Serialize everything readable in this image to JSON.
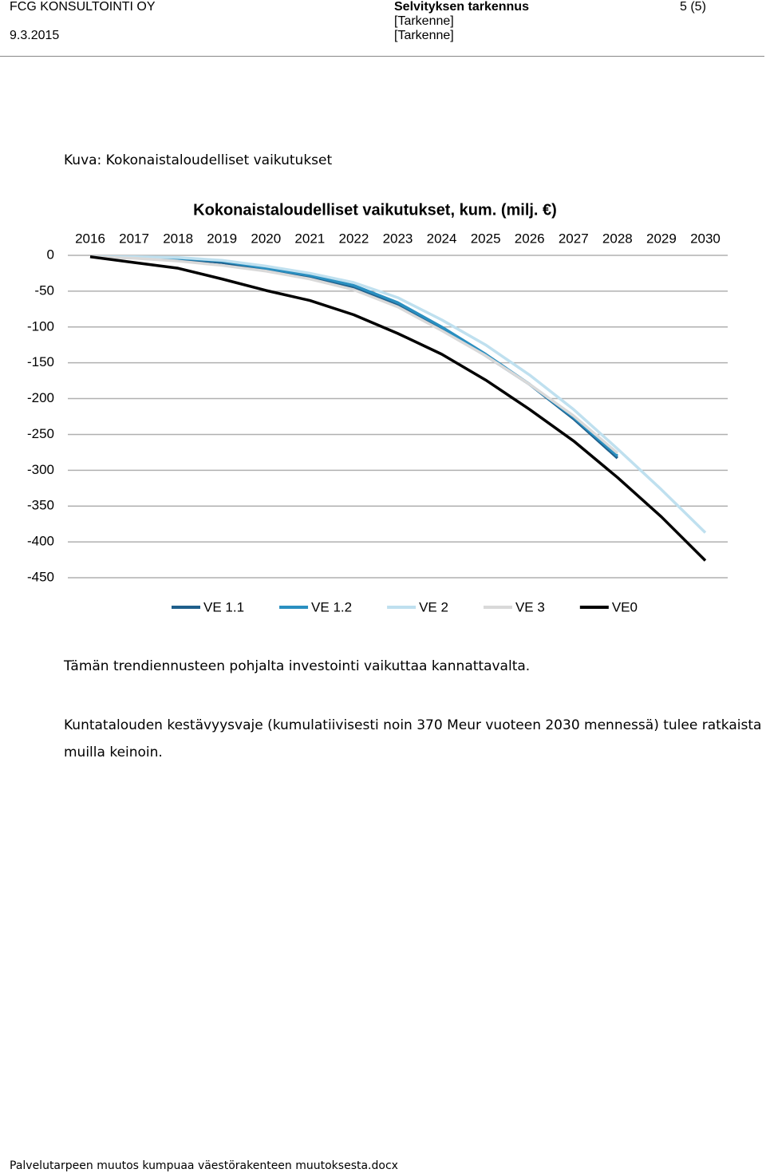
{
  "header": {
    "company": "FCG KONSULTOINTI OY",
    "date": "9.3.2015",
    "title": "Selvityksen tarkennus",
    "subtitle1": "[Tarkenne]",
    "subtitle2": "[Tarkenne]",
    "page": "5 (5)"
  },
  "caption": "Kuva: Kokonaistaloudelliset vaikutukset",
  "chart_data": {
    "type": "line",
    "title": "Kokonaistaloudelliset vaikutukset, kum. (milj. €)",
    "categories": [
      "2016",
      "2017",
      "2018",
      "2019",
      "2020",
      "2021",
      "2022",
      "2023",
      "2024",
      "2025",
      "2026",
      "2027",
      "2028",
      "2029",
      "2030"
    ],
    "series": [
      {
        "name": "VE 1.1",
        "color": "#1f5f8b",
        "values": [
          -2,
          -3,
          -5,
          -10,
          -20,
          -30,
          -45,
          -70,
          -103,
          -140,
          -180,
          -228,
          -283,
          null,
          null
        ]
      },
      {
        "name": "VE 1.2",
        "color": "#2a8fc0",
        "values": [
          -2,
          -3,
          -4,
          -8,
          -18,
          -28,
          -42,
          -66,
          -100,
          -138,
          -180,
          -226,
          -280,
          null,
          null
        ]
      },
      {
        "name": "VE 2",
        "color": "#bfe0ef",
        "values": [
          -2,
          -2,
          -3,
          -7,
          -15,
          -25,
          -38,
          -59,
          -90,
          -125,
          -167,
          -215,
          -270,
          -327,
          -387
        ]
      },
      {
        "name": "VE 3",
        "color": "#d9d9d9",
        "values": [
          -2,
          -4,
          -8,
          -14,
          -22,
          -33,
          -48,
          -72,
          -105,
          -140,
          -180,
          -224,
          -276,
          null,
          null
        ]
      },
      {
        "name": "VE0",
        "color": "#000000",
        "values": [
          -2,
          -10,
          -18,
          -33,
          -49,
          -63,
          -83,
          -109,
          -138,
          -174,
          -215,
          -259,
          -310,
          -365,
          -426
        ]
      }
    ],
    "ylim": [
      -450,
      0
    ],
    "yticks": [
      0,
      -50,
      -100,
      -150,
      -200,
      -250,
      -300,
      -350,
      -400,
      -450
    ],
    "grid": true,
    "legend": "bottom"
  },
  "paragraphs": [
    "Tämän trendiennusteen pohjalta investointi vaikuttaa kannattavalta.",
    "Kuntatalouden kestävyysvaje (kumulatiivisesti noin 370 Meur vuoteen 2030 mennessä) tulee ratkaista muilla keinoin."
  ],
  "footer": "Palvelutarpeen muutos kumpuaa väestörakenteen muutoksesta.docx"
}
